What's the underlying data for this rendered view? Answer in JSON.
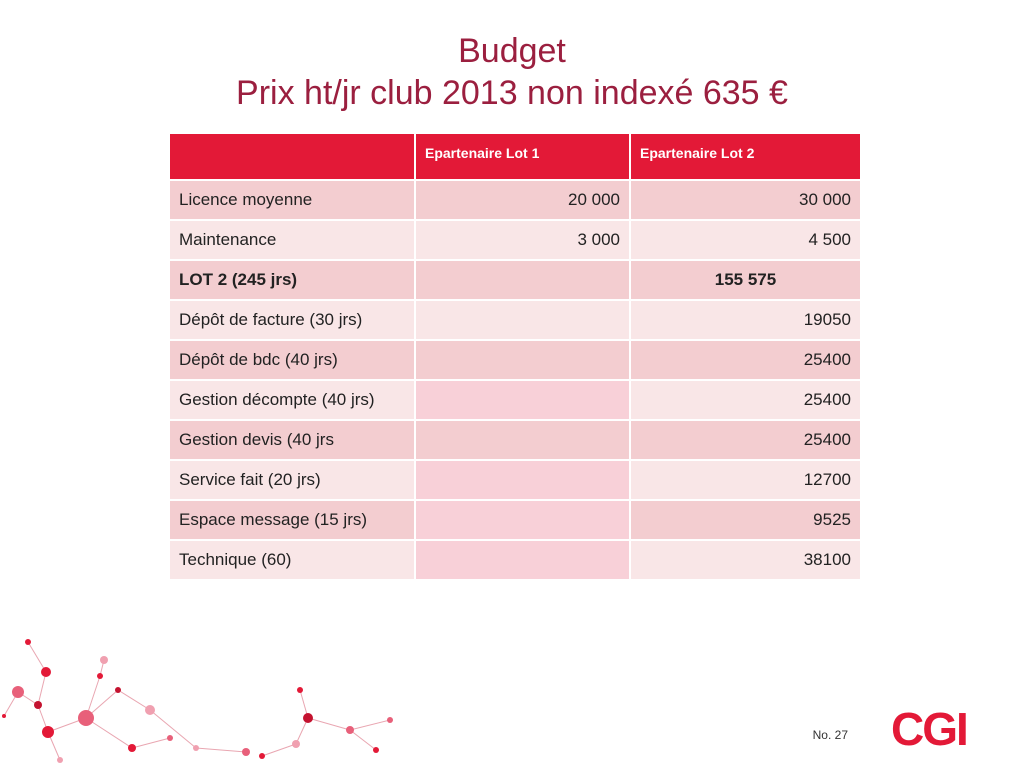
{
  "title": {
    "line1": "Budget",
    "line2": "Prix ht/jr club 2013 non indexé 635 €"
  },
  "table": {
    "headers": [
      "",
      "Epartenaire Lot 1",
      "Epartenaire Lot 2"
    ],
    "rows": [
      {
        "label": "Licence moyenne",
        "lot1": "20 000",
        "lot2": "30 000"
      },
      {
        "label": "Maintenance",
        "lot1": "3 000",
        "lot2": "4 500"
      },
      {
        "label": "LOT 2 (245 jrs)",
        "lot1": "",
        "lot2": "155 575"
      },
      {
        "label": "Dépôt de facture (30 jrs)",
        "lot1": "",
        "lot2": "19050"
      },
      {
        "label": "Dépôt de bdc (40 jrs)",
        "lot1": "",
        "lot2": "25400"
      },
      {
        "label": "Gestion décompte (40 jrs)",
        "lot1": "",
        "lot2": "25400"
      },
      {
        "label": "Gestion devis (40 jrs",
        "lot1": "",
        "lot2": "25400"
      },
      {
        "label": "Service fait (20 jrs)",
        "lot1": "",
        "lot2": "12700"
      },
      {
        "label": "Espace message (15 jrs)",
        "lot1": "",
        "lot2": "9525"
      },
      {
        "label": "Technique (60)",
        "lot1": "",
        "lot2": "38100"
      }
    ]
  },
  "footer": {
    "page_number": "No. 27",
    "logo_text": "CGI"
  },
  "colors": {
    "title": "#9b1f3f",
    "header_bg": "#e31937",
    "row_odd": "#f3cdd0",
    "row_even": "#f9e6e7",
    "empty_cell": "#f8d0d8",
    "logo": "#e31937"
  },
  "decoration": {
    "icon": "molecule-network-graphic"
  }
}
